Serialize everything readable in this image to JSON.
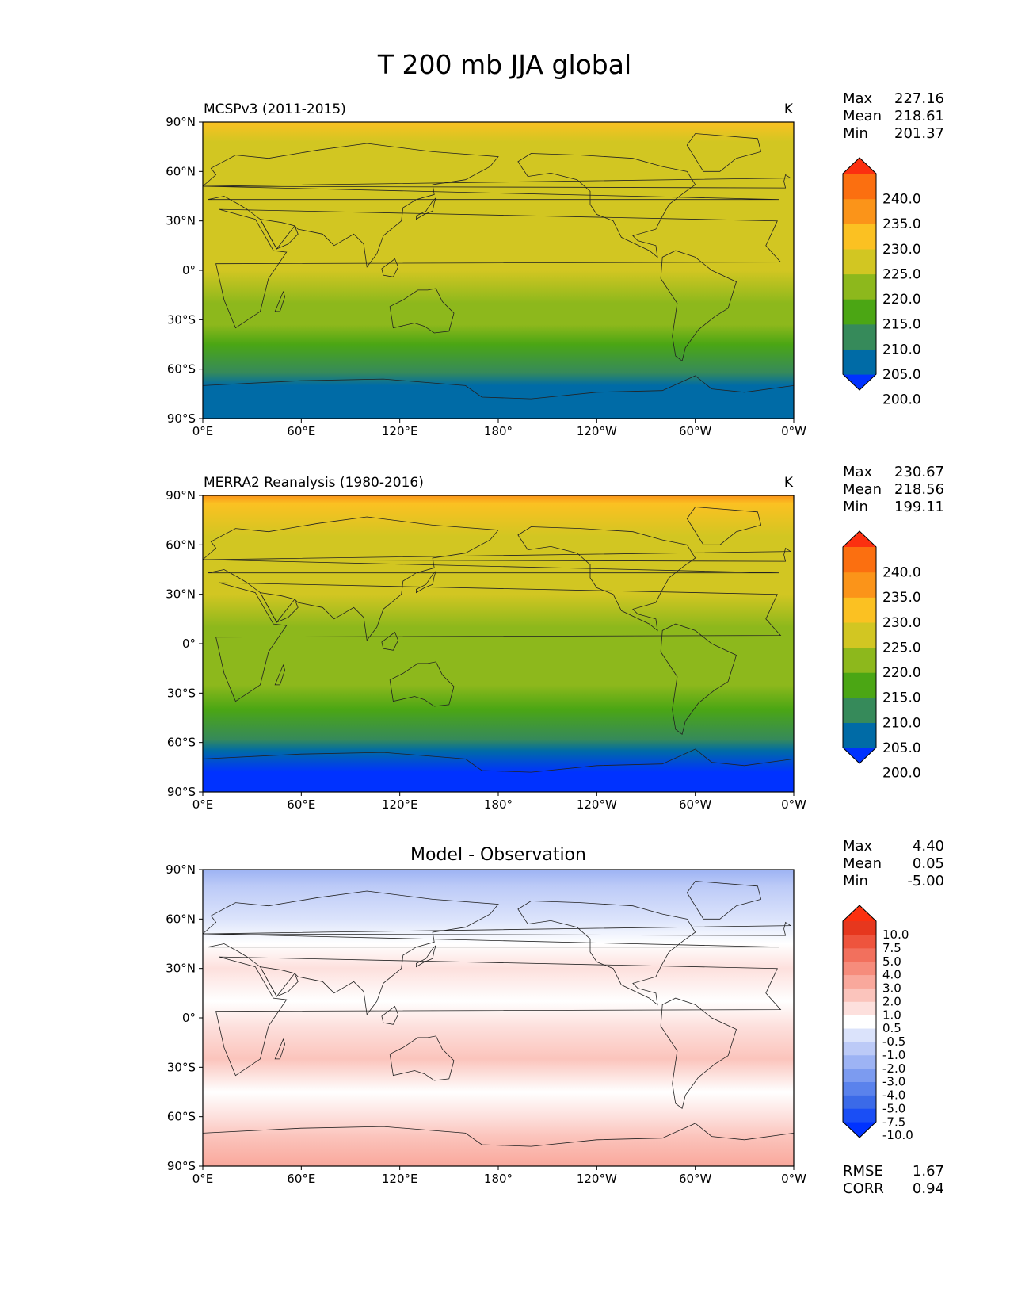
{
  "title": "T 200 mb JJA global",
  "units": "K",
  "x_ticks": [
    "0°E",
    "60°E",
    "120°E",
    "180°",
    "120°W",
    "60°W",
    "0°W"
  ],
  "y_ticks": [
    "90°N",
    "60°N",
    "30°N",
    "0°",
    "30°S",
    "60°S",
    "90°S"
  ],
  "stat_labels": {
    "max": "Max",
    "mean": "Mean",
    "min": "Min",
    "rmse": "RMSE",
    "corr": "CORR"
  },
  "panels": [
    {
      "id": "model",
      "title": "MCSPv3 (2011-2015)",
      "units": "K",
      "stats": {
        "max": "227.16",
        "mean": "218.61",
        "min": "201.37"
      },
      "colorbar": {
        "labels": [
          "240.0",
          "235.0",
          "230.0",
          "225.0",
          "220.0",
          "215.0",
          "210.0",
          "205.0",
          "200.0"
        ],
        "colors": [
          "#0032ff",
          "#006ba6",
          "#368a5a",
          "#4ba614",
          "#8db81c",
          "#d2c622",
          "#fbc122",
          "#fb9419",
          "#fb6f10",
          "#fb3010"
        ]
      },
      "bands": [
        {
          "lat": 90,
          "color": "#fbc122"
        },
        {
          "lat": 78,
          "color": "#d2c622"
        },
        {
          "lat": 60,
          "color": "#d2c622"
        },
        {
          "lat": 48,
          "color": "#d2c622"
        },
        {
          "lat": 35,
          "color": "#d2c622"
        },
        {
          "lat": 15,
          "color": "#d2c622"
        },
        {
          "lat": 0,
          "color": "#d2c622"
        },
        {
          "lat": -20,
          "color": "#8db81c"
        },
        {
          "lat": -33,
          "color": "#8db81c"
        },
        {
          "lat": -45,
          "color": "#4ba614"
        },
        {
          "lat": -62,
          "color": "#368a5a"
        },
        {
          "lat": -70,
          "color": "#006ba6"
        },
        {
          "lat": -90,
          "color": "#006ba6"
        }
      ]
    },
    {
      "id": "obs",
      "title": "MERRA2 Reanalysis (1980-2016)",
      "units": "K",
      "stats": {
        "max": "230.67",
        "mean": "218.56",
        "min": "199.11"
      },
      "colorbar": {
        "labels": [
          "240.0",
          "235.0",
          "230.0",
          "225.0",
          "220.0",
          "215.0",
          "210.0",
          "205.0",
          "200.0"
        ],
        "colors": [
          "#0032ff",
          "#006ba6",
          "#368a5a",
          "#4ba614",
          "#8db81c",
          "#d2c622",
          "#fbc122",
          "#fb9419",
          "#fb6f10",
          "#fb3010"
        ]
      },
      "bands": [
        {
          "lat": 90,
          "color": "#fb9419"
        },
        {
          "lat": 85,
          "color": "#fbc122"
        },
        {
          "lat": 65,
          "color": "#d2c622"
        },
        {
          "lat": 45,
          "color": "#d2c622"
        },
        {
          "lat": 30,
          "color": "#d2c622"
        },
        {
          "lat": 10,
          "color": "#8db81c"
        },
        {
          "lat": -5,
          "color": "#8db81c"
        },
        {
          "lat": -25,
          "color": "#8db81c"
        },
        {
          "lat": -40,
          "color": "#4ba614"
        },
        {
          "lat": -58,
          "color": "#368a5a"
        },
        {
          "lat": -65,
          "color": "#006ba6"
        },
        {
          "lat": -78,
          "color": "#0032ff"
        },
        {
          "lat": -90,
          "color": "#0032ff"
        }
      ]
    },
    {
      "id": "diff",
      "title": "Model - Observation",
      "units": "",
      "stats": {
        "max": "4.40",
        "mean": "0.05",
        "min": "-5.00"
      },
      "extra_stats": {
        "rmse": "1.67",
        "corr": "0.94"
      },
      "colorbar": {
        "labels": [
          "10.0",
          "7.5",
          "5.0",
          "4.0",
          "3.0",
          "2.0",
          "1.0",
          "0.5",
          "-0.5",
          "-1.0",
          "-2.0",
          "-3.0",
          "-4.0",
          "-5.0",
          "-7.5",
          "-10.0"
        ],
        "colors": [
          "#0032ff",
          "#1a4ef5",
          "#3b6ae8",
          "#5a82ec",
          "#7c9bf0",
          "#9db3f4",
          "#bccaf7",
          "#dbe3fb",
          "#ffffff",
          "#fde0dd",
          "#fbc4bc",
          "#f9a89c",
          "#f68c7c",
          "#f2705d",
          "#ee543d",
          "#e6371e",
          "#fb3010"
        ]
      },
      "bands": [
        {
          "lat": 90,
          "color": "#9db3f4"
        },
        {
          "lat": 80,
          "color": "#bccaf7"
        },
        {
          "lat": 60,
          "color": "#dbe3fb"
        },
        {
          "lat": 45,
          "color": "#ffffff"
        },
        {
          "lat": 30,
          "color": "#fde0dd"
        },
        {
          "lat": 10,
          "color": "#ffffff"
        },
        {
          "lat": -5,
          "color": "#fde0dd"
        },
        {
          "lat": -25,
          "color": "#fbc4bc"
        },
        {
          "lat": -45,
          "color": "#ffffff"
        },
        {
          "lat": -60,
          "color": "#fde0dd"
        },
        {
          "lat": -72,
          "color": "#fbc4bc"
        },
        {
          "lat": -90,
          "color": "#f9a89c"
        }
      ]
    }
  ]
}
